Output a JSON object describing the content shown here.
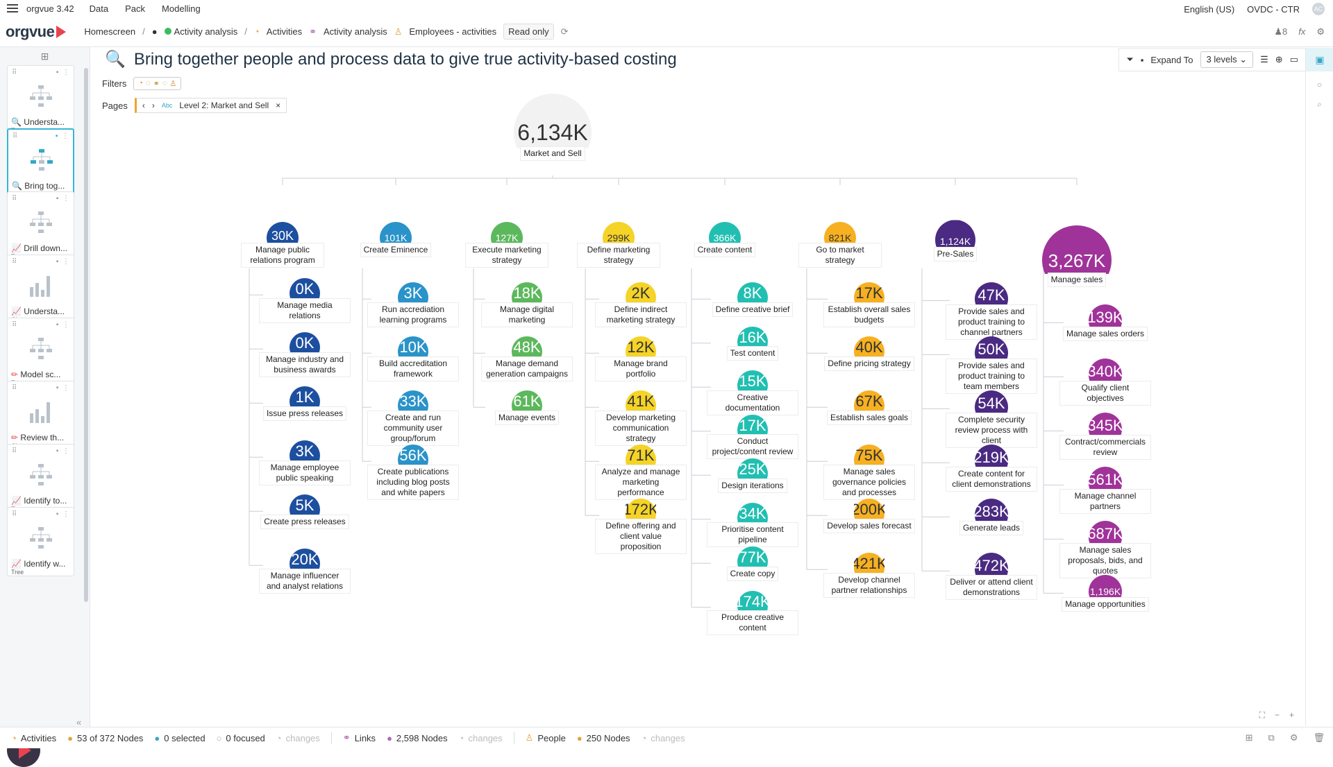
{
  "app": {
    "name": "orgvue 3.42",
    "menu": [
      "Data",
      "Pack",
      "Modelling"
    ],
    "language": "English (US)",
    "workspace": "OVDC - CTR",
    "user_initials": "AC"
  },
  "breadcrumb": {
    "logo": "orgvue",
    "home": "Homescreen",
    "analysis": "Activity analysis",
    "dataset": "Activities",
    "view": "Activity analysis",
    "people": "Employees - activities",
    "mode": "Read only",
    "viewers": "8"
  },
  "sidebar": {
    "cards": [
      {
        "title": "Understa...",
        "type": "Tree",
        "thumb": "tree",
        "icon": "search-icon"
      },
      {
        "title": "Bring tog...",
        "type": "Tree",
        "thumb": "tree",
        "icon": "search-icon"
      },
      {
        "title": "Drill down...",
        "type": "Tree",
        "thumb": "tree",
        "icon": "chart-icon"
      },
      {
        "title": "Understa...",
        "type": "Chart",
        "thumb": "bars",
        "icon": "chart-icon"
      },
      {
        "title": "Model sc...",
        "type": "Tree",
        "thumb": "tree",
        "icon": "pencil-icon"
      },
      {
        "title": "Review th...",
        "type": "Chart",
        "thumb": "bars",
        "icon": "pencil-icon"
      },
      {
        "title": "Identify to...",
        "type": "Tree",
        "thumb": "tree",
        "icon": "chart-icon"
      },
      {
        "title": "Identify w...",
        "type": "Tree",
        "thumb": "tree",
        "icon": "chart-icon"
      }
    ]
  },
  "main": {
    "title": "Bring together people and process data to give true activity-based costing",
    "filters_label": "Filters",
    "pages_label": "Pages",
    "pages_value": "Level 2: Market and Sell",
    "pages_type": "Abc",
    "expand_label": "Expand To",
    "expand_value": "3 levels"
  },
  "tree": {
    "root": {
      "value": "6,134K",
      "label": "Market and Sell"
    },
    "columns": [
      {
        "value": "30K",
        "label": "Manage public relations program",
        "color": "#1d4fa0",
        "children": [
          {
            "value": "0K",
            "label": "Manage media relations"
          },
          {
            "value": "0K",
            "label": "Manage industry and business awards"
          },
          {
            "value": "1K",
            "label": "Issue press releases"
          },
          {
            "value": "3K",
            "label": "Manage employee public speaking"
          },
          {
            "value": "5K",
            "label": "Create press releases"
          },
          {
            "value": "20K",
            "label": "Manage influencer and analyst relations"
          }
        ]
      },
      {
        "value": "101K",
        "label": "Create Eminence",
        "color": "#2a93c9",
        "children": [
          {
            "value": "3K",
            "label": "Run accrediation learning programs"
          },
          {
            "value": "10K",
            "label": "Build accreditation framework"
          },
          {
            "value": "33K",
            "label": "Create and run community user group/forum"
          },
          {
            "value": "56K",
            "label": "Create publications including blog posts and white papers"
          }
        ]
      },
      {
        "value": "127K",
        "label": "Execute marketing strategy",
        "color": "#5cb85c",
        "children": [
          {
            "value": "18K",
            "label": "Manage digital marketing"
          },
          {
            "value": "48K",
            "label": "Manage demand generation campaigns"
          },
          {
            "value": "61K",
            "label": "Manage events"
          }
        ]
      },
      {
        "value": "299K",
        "label": "Define marketing strategy",
        "color": "#f5d327",
        "children": [
          {
            "value": "2K",
            "label": "Define indirect marketing strategy"
          },
          {
            "value": "12K",
            "label": "Manage brand portfolio"
          },
          {
            "value": "41K",
            "label": "Develop marketing communication strategy"
          },
          {
            "value": "71K",
            "label": "Analyze and manage marketing performance"
          },
          {
            "value": "172K",
            "label": "Define offering and client value proposition"
          }
        ]
      },
      {
        "value": "366K",
        "label": "Create content",
        "color": "#21bfb1",
        "children": [
          {
            "value": "8K",
            "label": "Define creative brief"
          },
          {
            "value": "16K",
            "label": "Test content"
          },
          {
            "value": "15K",
            "label": "Creative documentation"
          },
          {
            "value": "17K",
            "label": "Conduct project/content review"
          },
          {
            "value": "25K",
            "label": "Design iterations"
          },
          {
            "value": "34K",
            "label": "Prioritise content pipeline"
          },
          {
            "value": "77K",
            "label": "Create copy"
          },
          {
            "value": "174K",
            "label": "Produce creative content"
          }
        ]
      },
      {
        "value": "821K",
        "label": "Go to market strategy",
        "color": "#f6b021",
        "children": [
          {
            "value": "17K",
            "label": "Establish overall sales budgets"
          },
          {
            "value": "40K",
            "label": "Define pricing strategy"
          },
          {
            "value": "67K",
            "label": "Establish sales goals"
          },
          {
            "value": "75K",
            "label": "Manage sales governance policies and processes"
          },
          {
            "value": "200K",
            "label": "Develop sales forecast"
          },
          {
            "value": "421K",
            "label": "Develop channel partner relationships"
          }
        ]
      },
      {
        "value": "1,124K",
        "label": "Pre-Sales",
        "color": "#4a2a82",
        "children": [
          {
            "value": "47K",
            "label": "Provide sales and product training to channel partners"
          },
          {
            "value": "50K",
            "label": "Provide sales and product training to team members"
          },
          {
            "value": "54K",
            "label": "Complete security review process with client"
          },
          {
            "value": "219K",
            "label": "Create content for client demonstrations"
          },
          {
            "value": "283K",
            "label": "Generate leads"
          },
          {
            "value": "472K",
            "label": "Deliver or attend client demonstrations"
          }
        ]
      },
      {
        "value": "3,267K",
        "label": "Manage sales",
        "color": "#a0339a",
        "children": [
          {
            "value": "139K",
            "label": "Manage sales orders"
          },
          {
            "value": "340K",
            "label": "Qualify client objectives"
          },
          {
            "value": "345K",
            "label": "Contract/commercials review"
          },
          {
            "value": "561K",
            "label": "Manage channel partners"
          },
          {
            "value": "687K",
            "label": "Manage sales proposals, bids, and quotes"
          },
          {
            "value": "1,196K",
            "label": "Manage opportunities"
          }
        ]
      }
    ]
  },
  "status": {
    "activities": "Activities",
    "act_nodes": "53 of 372 Nodes",
    "selected": "0 selected",
    "focused": "0 focused",
    "changes": "changes",
    "links": "Links",
    "link_nodes": "2,598 Nodes",
    "people": "People",
    "people_nodes": "250 Nodes"
  }
}
